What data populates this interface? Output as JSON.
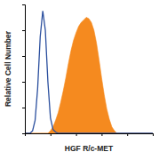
{
  "chart_data": {
    "type": "area",
    "x_label": "HGF R/c-MET",
    "y_label": "Relative Cell Number",
    "x": [
      1,
      1.26,
      1.58,
      2,
      2.51,
      3.16,
      3.98,
      5.01,
      6.31,
      7.94,
      10,
      12.6,
      15.8,
      20,
      25.1,
      31.6,
      39.8,
      50.1,
      63.1,
      79.4,
      100,
      126,
      158,
      200,
      251,
      316,
      398,
      501,
      631,
      794,
      1000,
      1259,
      1585,
      1995,
      2512,
      3162,
      3981,
      5012,
      6310,
      7943,
      10000,
      12589,
      15849,
      19953,
      25119,
      31623,
      39811,
      50119,
      63096,
      79433,
      100000
    ],
    "series": [
      {
        "type": "line",
        "color": "#2b4f9e",
        "values": [
          0,
          0,
          0,
          2,
          10,
          35,
          75,
          95,
          80,
          40,
          12,
          3,
          1,
          0,
          0,
          0,
          0,
          0,
          0,
          0,
          0,
          0,
          0,
          0,
          0,
          0,
          0,
          0,
          0,
          0,
          0,
          0,
          0,
          0,
          0,
          0,
          0,
          0,
          0,
          0,
          0,
          0,
          0,
          0,
          0,
          0,
          0,
          0,
          0,
          0,
          0
        ]
      },
      {
        "type": "area",
        "color": "#f58a1f",
        "values": [
          0,
          0,
          0,
          0,
          0,
          0,
          0,
          0,
          0,
          0,
          2,
          5,
          10,
          16,
          24,
          33,
          43,
          54,
          64,
          72,
          78,
          83,
          86,
          88,
          90,
          89,
          86,
          80,
          70,
          57,
          43,
          30,
          19,
          11,
          5,
          2,
          0,
          0,
          0,
          0,
          0,
          0,
          0,
          0,
          0,
          0,
          0,
          0,
          0,
          0,
          0
        ]
      }
    ],
    "log": "x",
    "xlim": [
      1,
      100000
    ],
    "xticks": [
      1,
      10,
      100,
      1000,
      10000,
      100000
    ],
    "ylim": [
      0,
      100
    ],
    "yticks": [
      0,
      20,
      40,
      60,
      80,
      100
    ],
    "tick_labels": false,
    "grid": false
  }
}
